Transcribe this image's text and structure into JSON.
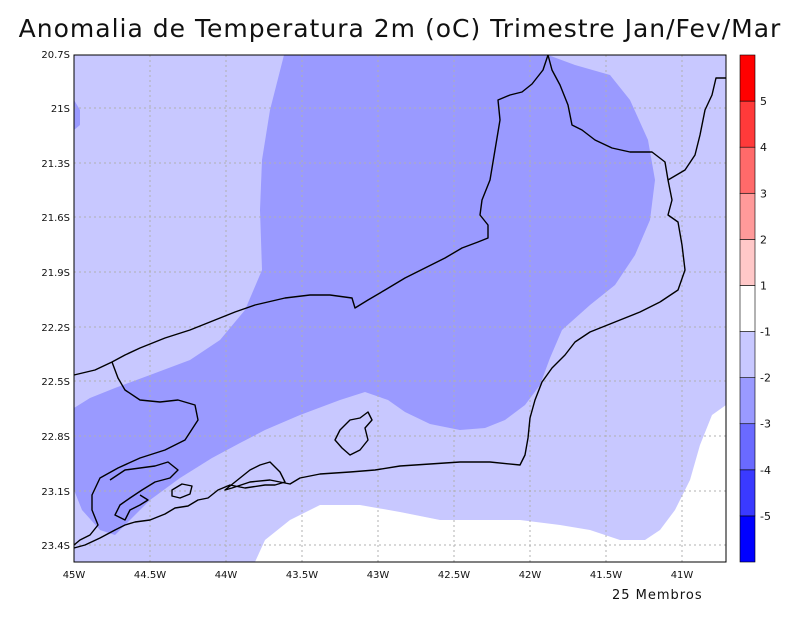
{
  "title": "Anomalia de Temperatura 2m (oC) Trimestre Jan/Fev/Mar",
  "footer": "25 Membros",
  "lat_labels": [
    "20.7S",
    "21S",
    "21.3S",
    "21.6S",
    "21.9S",
    "22.2S",
    "22.5S",
    "22.8S",
    "23.1S",
    "23.4S"
  ],
  "lon_labels": [
    "45W",
    "44.5W",
    "44W",
    "43.5W",
    "43W",
    "42.5W",
    "42W",
    "41.5W",
    "41W"
  ],
  "colorbar": {
    "colors": [
      "#0000ff",
      "#3a3aff",
      "#6a6aff",
      "#9a9aff",
      "#c8c8ff",
      "#ffffff",
      "#ffc8c8",
      "#ff9a9a",
      "#ff6a6a",
      "#ff3a3a",
      "#ff0000"
    ],
    "labels": [
      "-5",
      "-4",
      "-3",
      "-2",
      "-1",
      "1",
      "2",
      "3",
      "4",
      "5"
    ]
  },
  "colors": {
    "anom_-2_-1": "#c8c8ff",
    "anom_-3_-2": "#9a9aff",
    "anom_-1_1": "#ffffff"
  }
}
